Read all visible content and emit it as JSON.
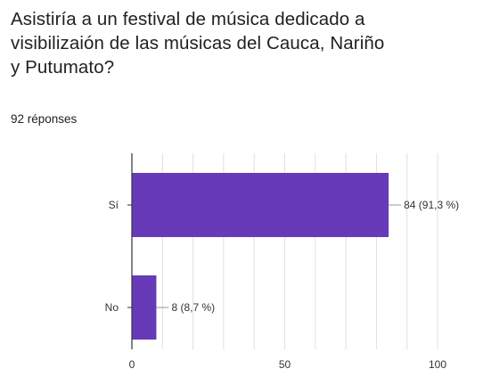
{
  "question": {
    "title": "Asistiría a un festival de música dedicado a visibilizaión de las músicas del Cauca, Nariño y Putumato?",
    "responses": "92 réponses"
  },
  "chart_data": {
    "type": "bar",
    "orientation": "horizontal",
    "categories": [
      "Sí",
      "No"
    ],
    "values": [
      84,
      8
    ],
    "data_labels": [
      "84 (91,3 %)",
      "8 (8,7 %)"
    ],
    "xlim": [
      0,
      100
    ],
    "xticks": [
      "0",
      "50",
      "100"
    ],
    "grid": true,
    "bar_color": "#673ab7"
  }
}
